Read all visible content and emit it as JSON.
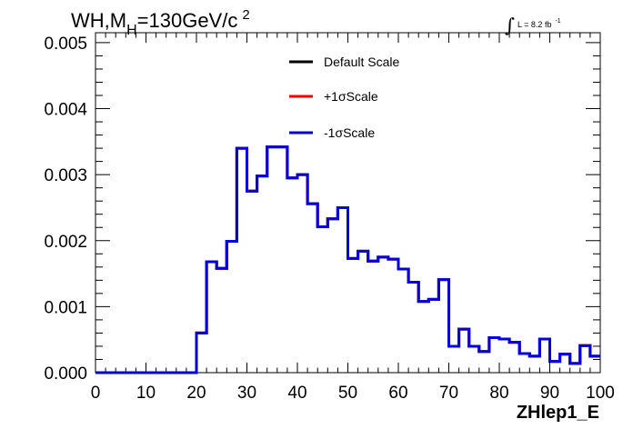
{
  "chart_data": {
    "type": "line",
    "title_main": "WH,M",
    "title_sub": "H",
    "title_rest": "=130GeV/c",
    "title_sup": "2",
    "lumi_integral": "∫",
    "lumi_text": "L = 8.2 fb",
    "lumi_sup": "-1",
    "xlabel": "ZHlep1_E",
    "ylabel": "",
    "xlim": [
      0,
      100
    ],
    "ylim": [
      0,
      0.00515
    ],
    "x_ticks": [
      0,
      10,
      20,
      30,
      40,
      50,
      60,
      70,
      80,
      90,
      100
    ],
    "x_tick_labels": [
      "0",
      "10",
      "20",
      "30",
      "40",
      "50",
      "60",
      "70",
      "80",
      "90",
      "100"
    ],
    "y_ticks": [
      0,
      0.001,
      0.002,
      0.003,
      0.004,
      0.005
    ],
    "y_tick_labels": [
      "0.000",
      "0.001",
      "0.002",
      "0.003",
      "0.004",
      "0.005"
    ],
    "grid": false,
    "legend_position": "top-center",
    "bin_width": 2,
    "bin_edges_start": 0,
    "series": [
      {
        "name": "Default Scale",
        "color": "#000000",
        "values": [
          0,
          0,
          0,
          0,
          0,
          0,
          0,
          0,
          0,
          0,
          0.0006,
          0.00168,
          0.00158,
          0.00199,
          0.0034,
          0.00275,
          0.00298,
          0.00342,
          0.00342,
          0.00295,
          0.003,
          0.00256,
          0.00221,
          0.00233,
          0.0025,
          0.00173,
          0.00184,
          0.00169,
          0.00175,
          0.00172,
          0.00157,
          0.00137,
          0.00108,
          0.00111,
          0.00141,
          0.0004,
          0.00066,
          0.0004,
          0.00032,
          0.00053,
          0.00051,
          0.00046,
          0.00029,
          0.00025,
          0.00051,
          0.00017,
          0.00028,
          0.00014,
          0.00041,
          0.00025
        ]
      },
      {
        "name": "+1σScale",
        "color": "#ff0000",
        "values": [
          0,
          0,
          0,
          0,
          0,
          0,
          0,
          0,
          0,
          0,
          0.0006,
          0.00168,
          0.00158,
          0.00199,
          0.0034,
          0.00275,
          0.00298,
          0.00342,
          0.00342,
          0.00295,
          0.003,
          0.00256,
          0.00221,
          0.00233,
          0.0025,
          0.00173,
          0.00184,
          0.00169,
          0.00175,
          0.00172,
          0.00157,
          0.00137,
          0.00108,
          0.00111,
          0.00141,
          0.0004,
          0.00066,
          0.0004,
          0.00032,
          0.00053,
          0.00051,
          0.00046,
          0.00029,
          0.00025,
          0.00051,
          0.00017,
          0.00028,
          0.00014,
          0.00041,
          0.00025
        ]
      },
      {
        "name": "-1σScale",
        "color": "#0000dd",
        "values": [
          0,
          0,
          0,
          0,
          0,
          0,
          0,
          0,
          0,
          0,
          0.0006,
          0.00168,
          0.00158,
          0.00199,
          0.0034,
          0.00275,
          0.00298,
          0.00342,
          0.00342,
          0.00295,
          0.003,
          0.00256,
          0.00221,
          0.00233,
          0.0025,
          0.00173,
          0.00184,
          0.00169,
          0.00175,
          0.00172,
          0.00157,
          0.00137,
          0.00108,
          0.00111,
          0.00141,
          0.0004,
          0.00066,
          0.0004,
          0.00032,
          0.00053,
          0.00051,
          0.00046,
          0.00029,
          0.00025,
          0.00051,
          0.00017,
          0.00028,
          0.00014,
          0.00041,
          0.00025
        ]
      }
    ]
  }
}
